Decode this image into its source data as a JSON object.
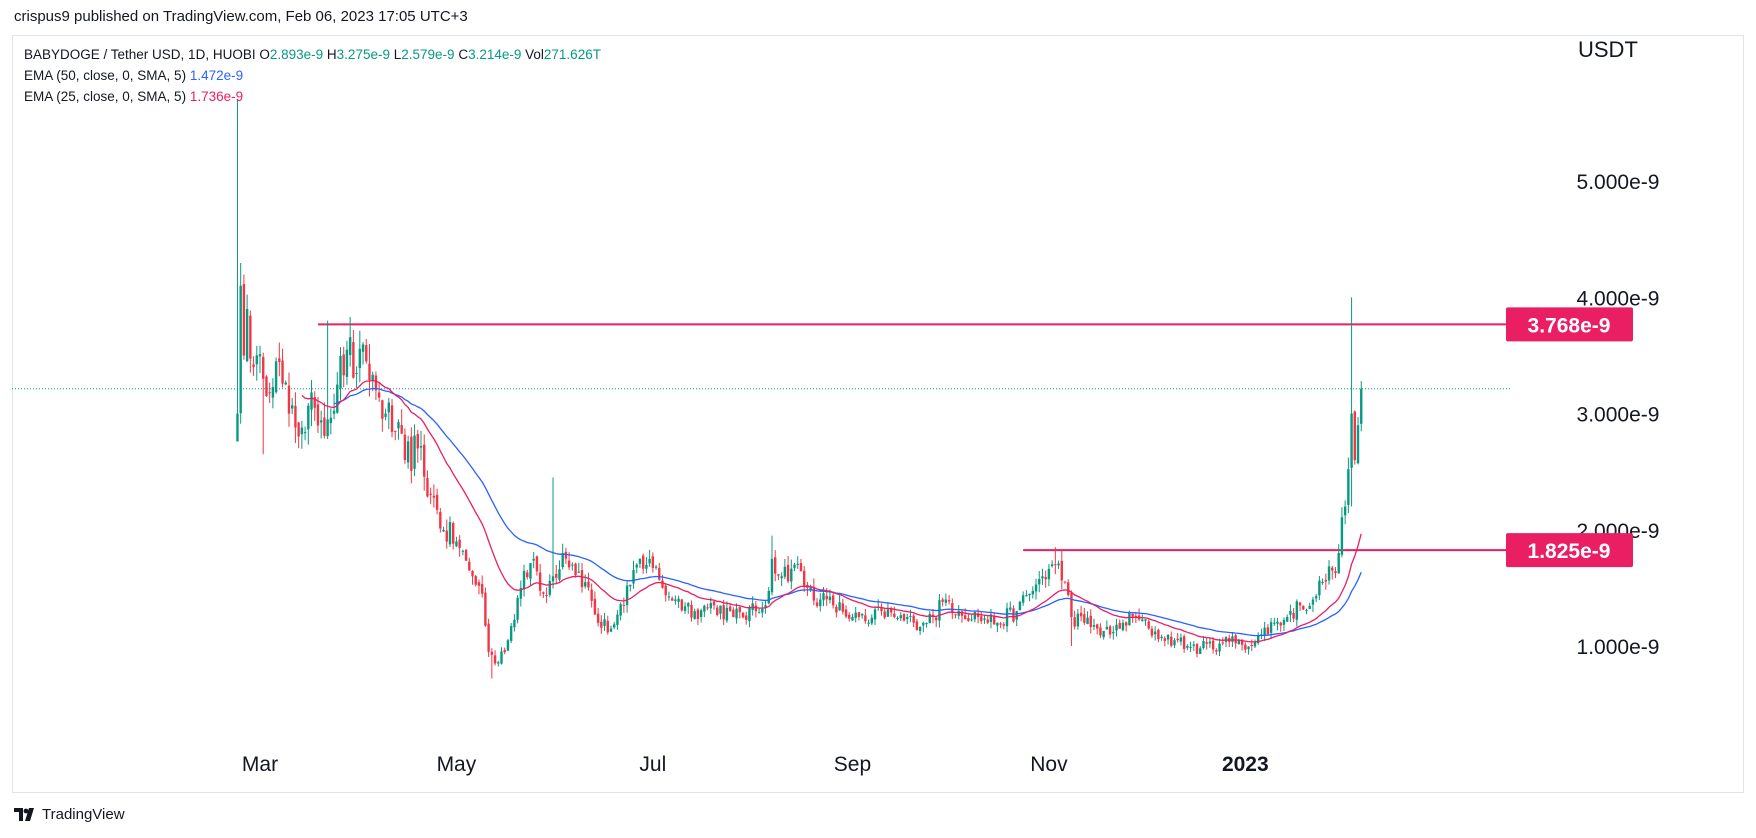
{
  "header": {
    "published_text": "crispus9 published on TradingView.com, Feb 06, 2023 17:05 UTC+3"
  },
  "legend": {
    "symbol": "BABYDOGE / Tether USD, 1D, HUOBI",
    "ohlc": {
      "o_label": "O",
      "o": "2.893e-9",
      "h_label": "H",
      "h": "3.275e-9",
      "l_label": "L",
      "l": "2.579e-9",
      "c_label": "C",
      "c": "3.214e-9",
      "vol_label": "Vol",
      "vol": "271.626T"
    },
    "ema50_label": "EMA (50, close, 0, SMA, 5)",
    "ema50_value": "1.472e-9",
    "ema25_label": "EMA (25, close, 0, SMA, 5)",
    "ema25_value": "1.736e-9"
  },
  "footer": {
    "brand": "TradingView"
  },
  "colors": {
    "up": "#089981",
    "down": "#f23645",
    "ema50": "#2962ff",
    "ema25": "#e91e63",
    "level_line": "#e91e63",
    "current_price_line": "#089981",
    "axis_text": "#131722"
  },
  "chart_data": {
    "type": "candlestick",
    "currency_label": "USDT",
    "y_axis": {
      "min": 0.5,
      "max": 5.6,
      "unit": "e-9",
      "ticks": [
        {
          "value": 1.0,
          "label": "1.000e-9"
        },
        {
          "value": 2.0,
          "label": "2.000e-9"
        },
        {
          "value": 3.0,
          "label": "3.000e-9"
        },
        {
          "value": 4.0,
          "label": "4.000e-9"
        },
        {
          "value": 5.0,
          "label": "5.000e-9"
        }
      ]
    },
    "x_axis": {
      "ticks": [
        {
          "date": "2022-03-01",
          "label": "Mar",
          "bold": false
        },
        {
          "date": "2022-05-01",
          "label": "May",
          "bold": false
        },
        {
          "date": "2022-07-01",
          "label": "Jul",
          "bold": false
        },
        {
          "date": "2022-09-01",
          "label": "Sep",
          "bold": false
        },
        {
          "date": "2022-11-01",
          "label": "Nov",
          "bold": false
        },
        {
          "date": "2023-01-01",
          "label": "2023",
          "bold": true
        }
      ]
    },
    "horizontal_levels": [
      {
        "value": 3.768,
        "label": "3.768e-9",
        "from_date": "2022-03-19"
      },
      {
        "value": 1.825,
        "label": "1.825e-9",
        "from_date": "2022-10-24"
      }
    ],
    "current_price": 3.214,
    "price_path": [
      [
        "2022-02-22",
        3.0
      ],
      [
        "2022-02-23",
        4.1
      ],
      [
        "2022-02-24",
        3.5
      ],
      [
        "2022-02-25",
        3.9
      ],
      [
        "2022-02-27",
        3.4
      ],
      [
        "2022-03-02",
        3.3
      ],
      [
        "2022-03-06",
        3.45
      ],
      [
        "2022-03-10",
        3.0
      ],
      [
        "2022-03-14",
        2.88
      ],
      [
        "2022-03-18",
        3.05
      ],
      [
        "2022-03-22",
        2.95
      ],
      [
        "2022-03-25",
        3.25
      ],
      [
        "2022-03-28",
        3.55
      ],
      [
        "2022-03-31",
        3.35
      ],
      [
        "2022-04-03",
        3.45
      ],
      [
        "2022-04-06",
        3.2
      ],
      [
        "2022-04-09",
        3.0
      ],
      [
        "2022-04-12",
        2.85
      ],
      [
        "2022-04-15",
        2.6
      ],
      [
        "2022-04-19",
        2.7
      ],
      [
        "2022-04-23",
        2.3
      ],
      [
        "2022-04-27",
        2.0
      ],
      [
        "2022-05-01",
        1.9
      ],
      [
        "2022-05-05",
        1.65
      ],
      [
        "2022-05-09",
        1.45
      ],
      [
        "2022-05-11",
        0.95
      ],
      [
        "2022-05-13",
        0.85
      ],
      [
        "2022-05-17",
        1.05
      ],
      [
        "2022-05-21",
        1.5
      ],
      [
        "2022-05-25",
        1.75
      ],
      [
        "2022-05-28",
        1.45
      ],
      [
        "2022-05-31",
        1.6
      ],
      [
        "2022-06-03",
        1.8
      ],
      [
        "2022-06-06",
        1.7
      ],
      [
        "2022-06-10",
        1.55
      ],
      [
        "2022-06-14",
        1.2
      ],
      [
        "2022-06-18",
        1.15
      ],
      [
        "2022-06-22",
        1.35
      ],
      [
        "2022-06-26",
        1.7
      ],
      [
        "2022-06-30",
        1.75
      ],
      [
        "2022-07-04",
        1.5
      ],
      [
        "2022-07-08",
        1.4
      ],
      [
        "2022-07-14",
        1.3
      ],
      [
        "2022-07-20",
        1.35
      ],
      [
        "2022-07-26",
        1.25
      ],
      [
        "2022-08-02",
        1.3
      ],
      [
        "2022-08-05",
        1.35
      ],
      [
        "2022-08-07",
        1.75
      ],
      [
        "2022-08-10",
        1.6
      ],
      [
        "2022-08-14",
        1.7
      ],
      [
        "2022-08-18",
        1.5
      ],
      [
        "2022-08-22",
        1.4
      ],
      [
        "2022-08-26",
        1.35
      ],
      [
        "2022-09-01",
        1.25
      ],
      [
        "2022-09-06",
        1.2
      ],
      [
        "2022-09-10",
        1.3
      ],
      [
        "2022-09-14",
        1.25
      ],
      [
        "2022-09-20",
        1.2
      ],
      [
        "2022-09-26",
        1.25
      ],
      [
        "2022-09-30",
        1.4
      ],
      [
        "2022-10-04",
        1.3
      ],
      [
        "2022-10-10",
        1.25
      ],
      [
        "2022-10-16",
        1.2
      ],
      [
        "2022-10-22",
        1.3
      ],
      [
        "2022-10-26",
        1.45
      ],
      [
        "2022-10-30",
        1.6
      ],
      [
        "2022-11-03",
        1.7
      ],
      [
        "2022-11-06",
        1.55
      ],
      [
        "2022-11-08",
        1.25
      ],
      [
        "2022-11-12",
        1.2
      ],
      [
        "2022-11-16",
        1.15
      ],
      [
        "2022-11-20",
        1.1
      ],
      [
        "2022-11-24",
        1.2
      ],
      [
        "2022-11-28",
        1.25
      ],
      [
        "2022-12-02",
        1.15
      ],
      [
        "2022-12-06",
        1.08
      ],
      [
        "2022-12-10",
        1.05
      ],
      [
        "2022-12-14",
        1.0
      ],
      [
        "2022-12-18",
        0.98
      ],
      [
        "2022-12-24",
        1.02
      ],
      [
        "2022-12-30",
        1.05
      ],
      [
        "2023-01-03",
        1.0
      ],
      [
        "2023-01-06",
        1.1
      ],
      [
        "2023-01-10",
        1.2
      ],
      [
        "2023-01-14",
        1.25
      ],
      [
        "2023-01-18",
        1.35
      ],
      [
        "2023-01-22",
        1.4
      ],
      [
        "2023-01-25",
        1.55
      ],
      [
        "2023-01-28",
        1.65
      ],
      [
        "2023-01-30",
        1.8
      ],
      [
        "2023-02-01",
        2.2
      ],
      [
        "2023-02-03",
        3.0
      ],
      [
        "2023-02-04",
        2.6
      ],
      [
        "2023-02-05",
        2.9
      ],
      [
        "2023-02-06",
        3.214
      ]
    ]
  }
}
